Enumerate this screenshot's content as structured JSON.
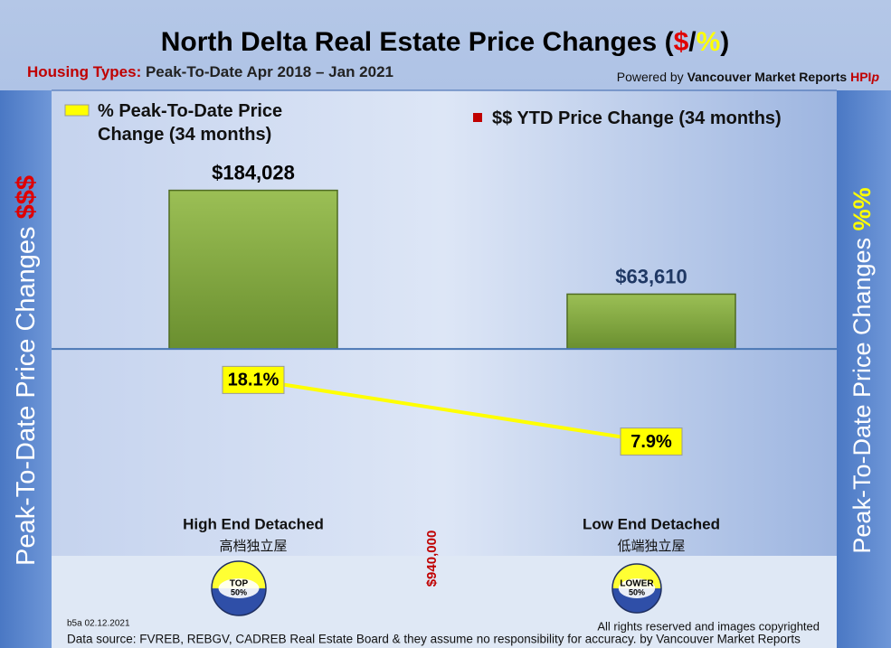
{
  "chart_data": {
    "type": "bar",
    "title": [
      "North Delta Real Estate Price Changes (",
      "$",
      "/",
      "%",
      ")"
    ],
    "subtitle": [
      "Housing Types:",
      " Peak-To-Date Apr 2018 – Jan 2021"
    ],
    "credit": [
      "Powered by ",
      "Vancouver Market Reports ",
      "HPI",
      "p"
    ],
    "categories": [
      "High End Detached",
      "Low End Detached"
    ],
    "categories_zh": [
      "高档独立屋",
      "低端独立屋"
    ],
    "badges": [
      [
        "TOP",
        "50%"
      ],
      [
        "LOWER",
        "50%"
      ]
    ],
    "series": [
      {
        "name": "$$ YTD Price Change (34 months)",
        "color": "#7fa53a",
        "values": [
          184028,
          63610
        ],
        "value_labels": [
          "$184,028",
          "$63,610"
        ]
      },
      {
        "name": "% Peak-To-Date Price Change (34 months)",
        "color": "#ffff00",
        "axis": "y2",
        "values": [
          18.1,
          7.9
        ],
        "value_labels": [
          "18.1%",
          "7.9%"
        ]
      }
    ],
    "ylim": [
      -240000,
      300000
    ],
    "y2lim": [
      -11,
      66
    ],
    "y_label": [
      "Peak-To-Date Price Changes ",
      "$$$"
    ],
    "y2_label": [
      "Peak-To-Date  Price  Changes  ",
      "%%"
    ],
    "annotations": {
      "divider": "$940,000",
      "version": "b5a 02.12.2021",
      "rights": "All rights reserved and  images copyrighted",
      "source": "Data source: FVREB, REBGV, CADREB Real Estate Board & they assume no responsibility for accuracy. by Vancouver Market Reports"
    }
  }
}
